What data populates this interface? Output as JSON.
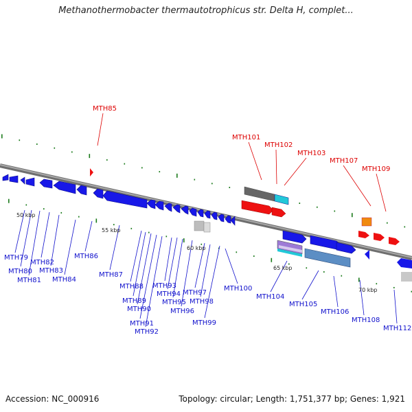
{
  "title": "Methanothermobacter thermautotrophicus str. Delta H, complet...",
  "footer": {
    "accession": "Accession: NC_000916",
    "topology": "Topology: circular; Length: 1,751,377 bp; Genes: 1,921"
  },
  "colors": {
    "backbone": "#7a7a7a",
    "forward_gene": "#1010ee",
    "rna_label": "#dd0000",
    "tick": "#1a7a1a"
  },
  "kbp_labels": [
    "50 kbp",
    "55 kbp",
    "60 kbp",
    "65 kbp",
    "70 kbp"
  ],
  "labels_top": [
    "MTH85",
    "MTH101",
    "MTH102",
    "MTH103",
    "MTH107",
    "MTH109"
  ],
  "labels_bottom": [
    "MTH79",
    "MTH80",
    "MTH81",
    "MTH82",
    "MTH83",
    "MTH84",
    "MTH86",
    "MTH87",
    "MTH88",
    "MTH89",
    "MTH90",
    "MTH91",
    "MTH92",
    "MTH93",
    "MTH94",
    "MTH95",
    "MTH96",
    "MTH97",
    "MTH98",
    "MTH99",
    "MTH100",
    "MTH104",
    "MTH105",
    "MTH106",
    "MTH108",
    "MTH112"
  ]
}
